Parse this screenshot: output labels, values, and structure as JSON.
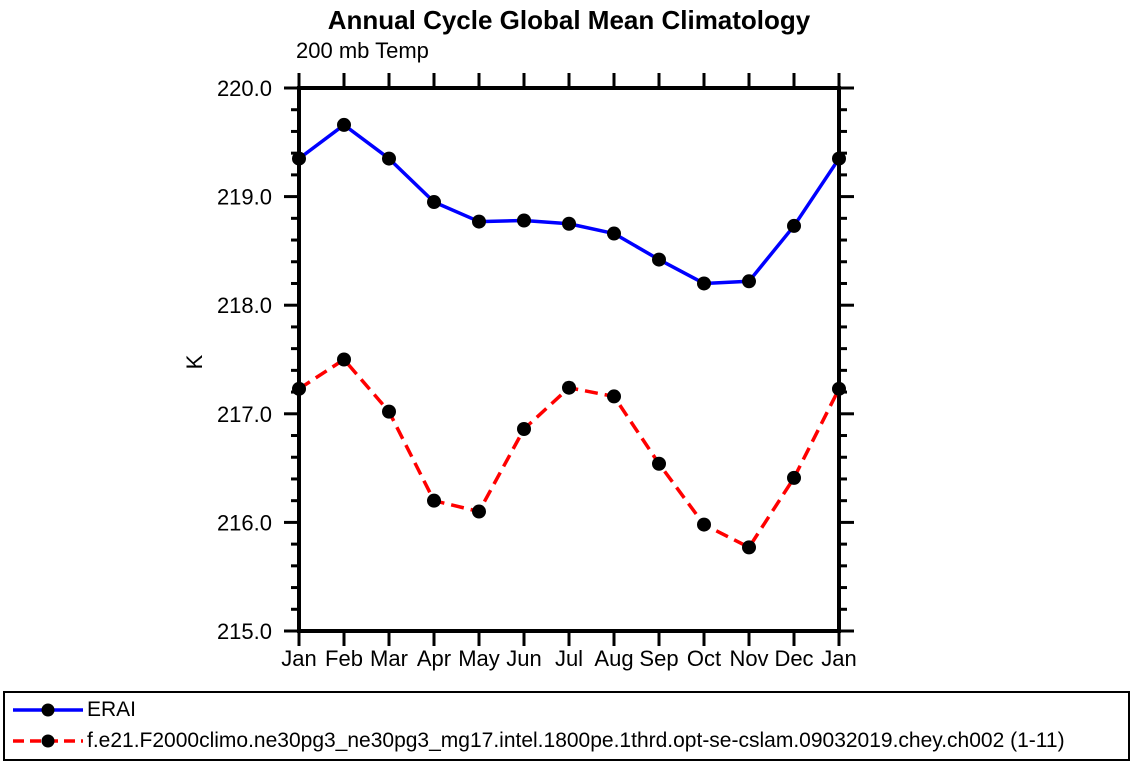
{
  "chart_data": {
    "type": "line",
    "title": "Annual Cycle Global Mean Climatology",
    "subtitle": "200 mb Temp",
    "xlabel": "",
    "ylabel": "K",
    "categories": [
      "Jan",
      "Feb",
      "Mar",
      "Apr",
      "May",
      "Jun",
      "Jul",
      "Aug",
      "Sep",
      "Oct",
      "Nov",
      "Dec",
      "Jan"
    ],
    "series": [
      {
        "name": "ERAI",
        "color": "#0000ff",
        "line_style": "solid",
        "marker": "filled-circle",
        "marker_color": "#000000",
        "values": [
          219.35,
          219.66,
          219.35,
          218.95,
          218.77,
          218.78,
          218.75,
          218.66,
          218.42,
          218.2,
          218.22,
          218.73,
          219.35
        ]
      },
      {
        "name": "f.e21.F2000climo.ne30pg3_ne30pg3_mg17.intel.1800pe.1thrd.opt-se-cslam.09032019.chey.ch002 (1-11)",
        "color": "#ff0000",
        "line_style": "dashed",
        "marker": "filled-circle",
        "marker_color": "#000000",
        "values": [
          217.23,
          217.5,
          217.02,
          216.2,
          216.1,
          216.86,
          217.24,
          217.16,
          216.54,
          215.98,
          215.77,
          216.41,
          217.23
        ]
      }
    ],
    "ylim": [
      215.0,
      220.0
    ],
    "ytick_labels": [
      "215.0",
      "216.0",
      "217.0",
      "218.0",
      "219.0",
      "220.0"
    ],
    "ymajor_step": 1.0,
    "yminor_step": 0.2,
    "grid": false,
    "axis_color": "#000000",
    "legend_position": "bottom-outside-box"
  }
}
